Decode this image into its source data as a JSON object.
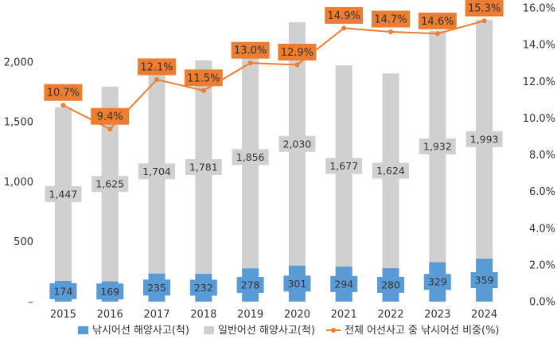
{
  "chart_data": {
    "type": "bar",
    "stacked": true,
    "categories": [
      "2015",
      "2016",
      "2017",
      "2018",
      "2019",
      "2020",
      "2021",
      "2022",
      "2023",
      "2024"
    ],
    "series": [
      {
        "name": "낚시어선 해양사고(척)",
        "kind": "bar",
        "axis": "left",
        "color": "#5b9bd5",
        "values": [
          174,
          169,
          235,
          232,
          278,
          301,
          294,
          280,
          329,
          359
        ],
        "labels": [
          "174",
          "169",
          "235",
          "232",
          "278",
          "301",
          "294",
          "280",
          "329",
          "359"
        ]
      },
      {
        "name": "일반어선 해양사고(척)",
        "kind": "bar",
        "axis": "left",
        "color": "#d0d0d0",
        "values": [
          1447,
          1625,
          1704,
          1781,
          1856,
          2030,
          1677,
          1624,
          1932,
          1993
        ],
        "labels": [
          "1,447",
          "1,625",
          "1,704",
          "1,781",
          "1,856",
          "2,030",
          "1,677",
          "1,624",
          "1,932",
          "1,993"
        ]
      },
      {
        "name": "전체 어선사고 중 낚시어선 비중(%)",
        "kind": "line",
        "axis": "right",
        "color": "#ed7d31",
        "values": [
          10.7,
          9.4,
          12.1,
          11.5,
          13.0,
          12.9,
          14.9,
          14.7,
          14.6,
          15.3
        ],
        "labels": [
          "10.7%",
          "9.4%",
          "12.1%",
          "11.5%",
          "13.0%",
          "12.9%",
          "14.9%",
          "14.7%",
          "14.6%",
          "15.3%"
        ]
      }
    ],
    "y_left": {
      "range": [
        0,
        2450
      ],
      "ticks": [
        0,
        500,
        1000,
        1500,
        2000
      ],
      "tick_labels": [
        "–",
        "500",
        "1,000",
        "1,500",
        "2,000"
      ]
    },
    "y_right": {
      "range": [
        0,
        16
      ],
      "ticks": [
        0,
        2,
        4,
        6,
        8,
        10,
        12,
        14,
        16
      ],
      "tick_labels": [
        "0.0%",
        "2.0%",
        "4.0%",
        "6.0%",
        "8.0%",
        "10.0%",
        "12.0%",
        "14.0%",
        "16.0%"
      ]
    },
    "grid": false,
    "legend": "bottom"
  }
}
